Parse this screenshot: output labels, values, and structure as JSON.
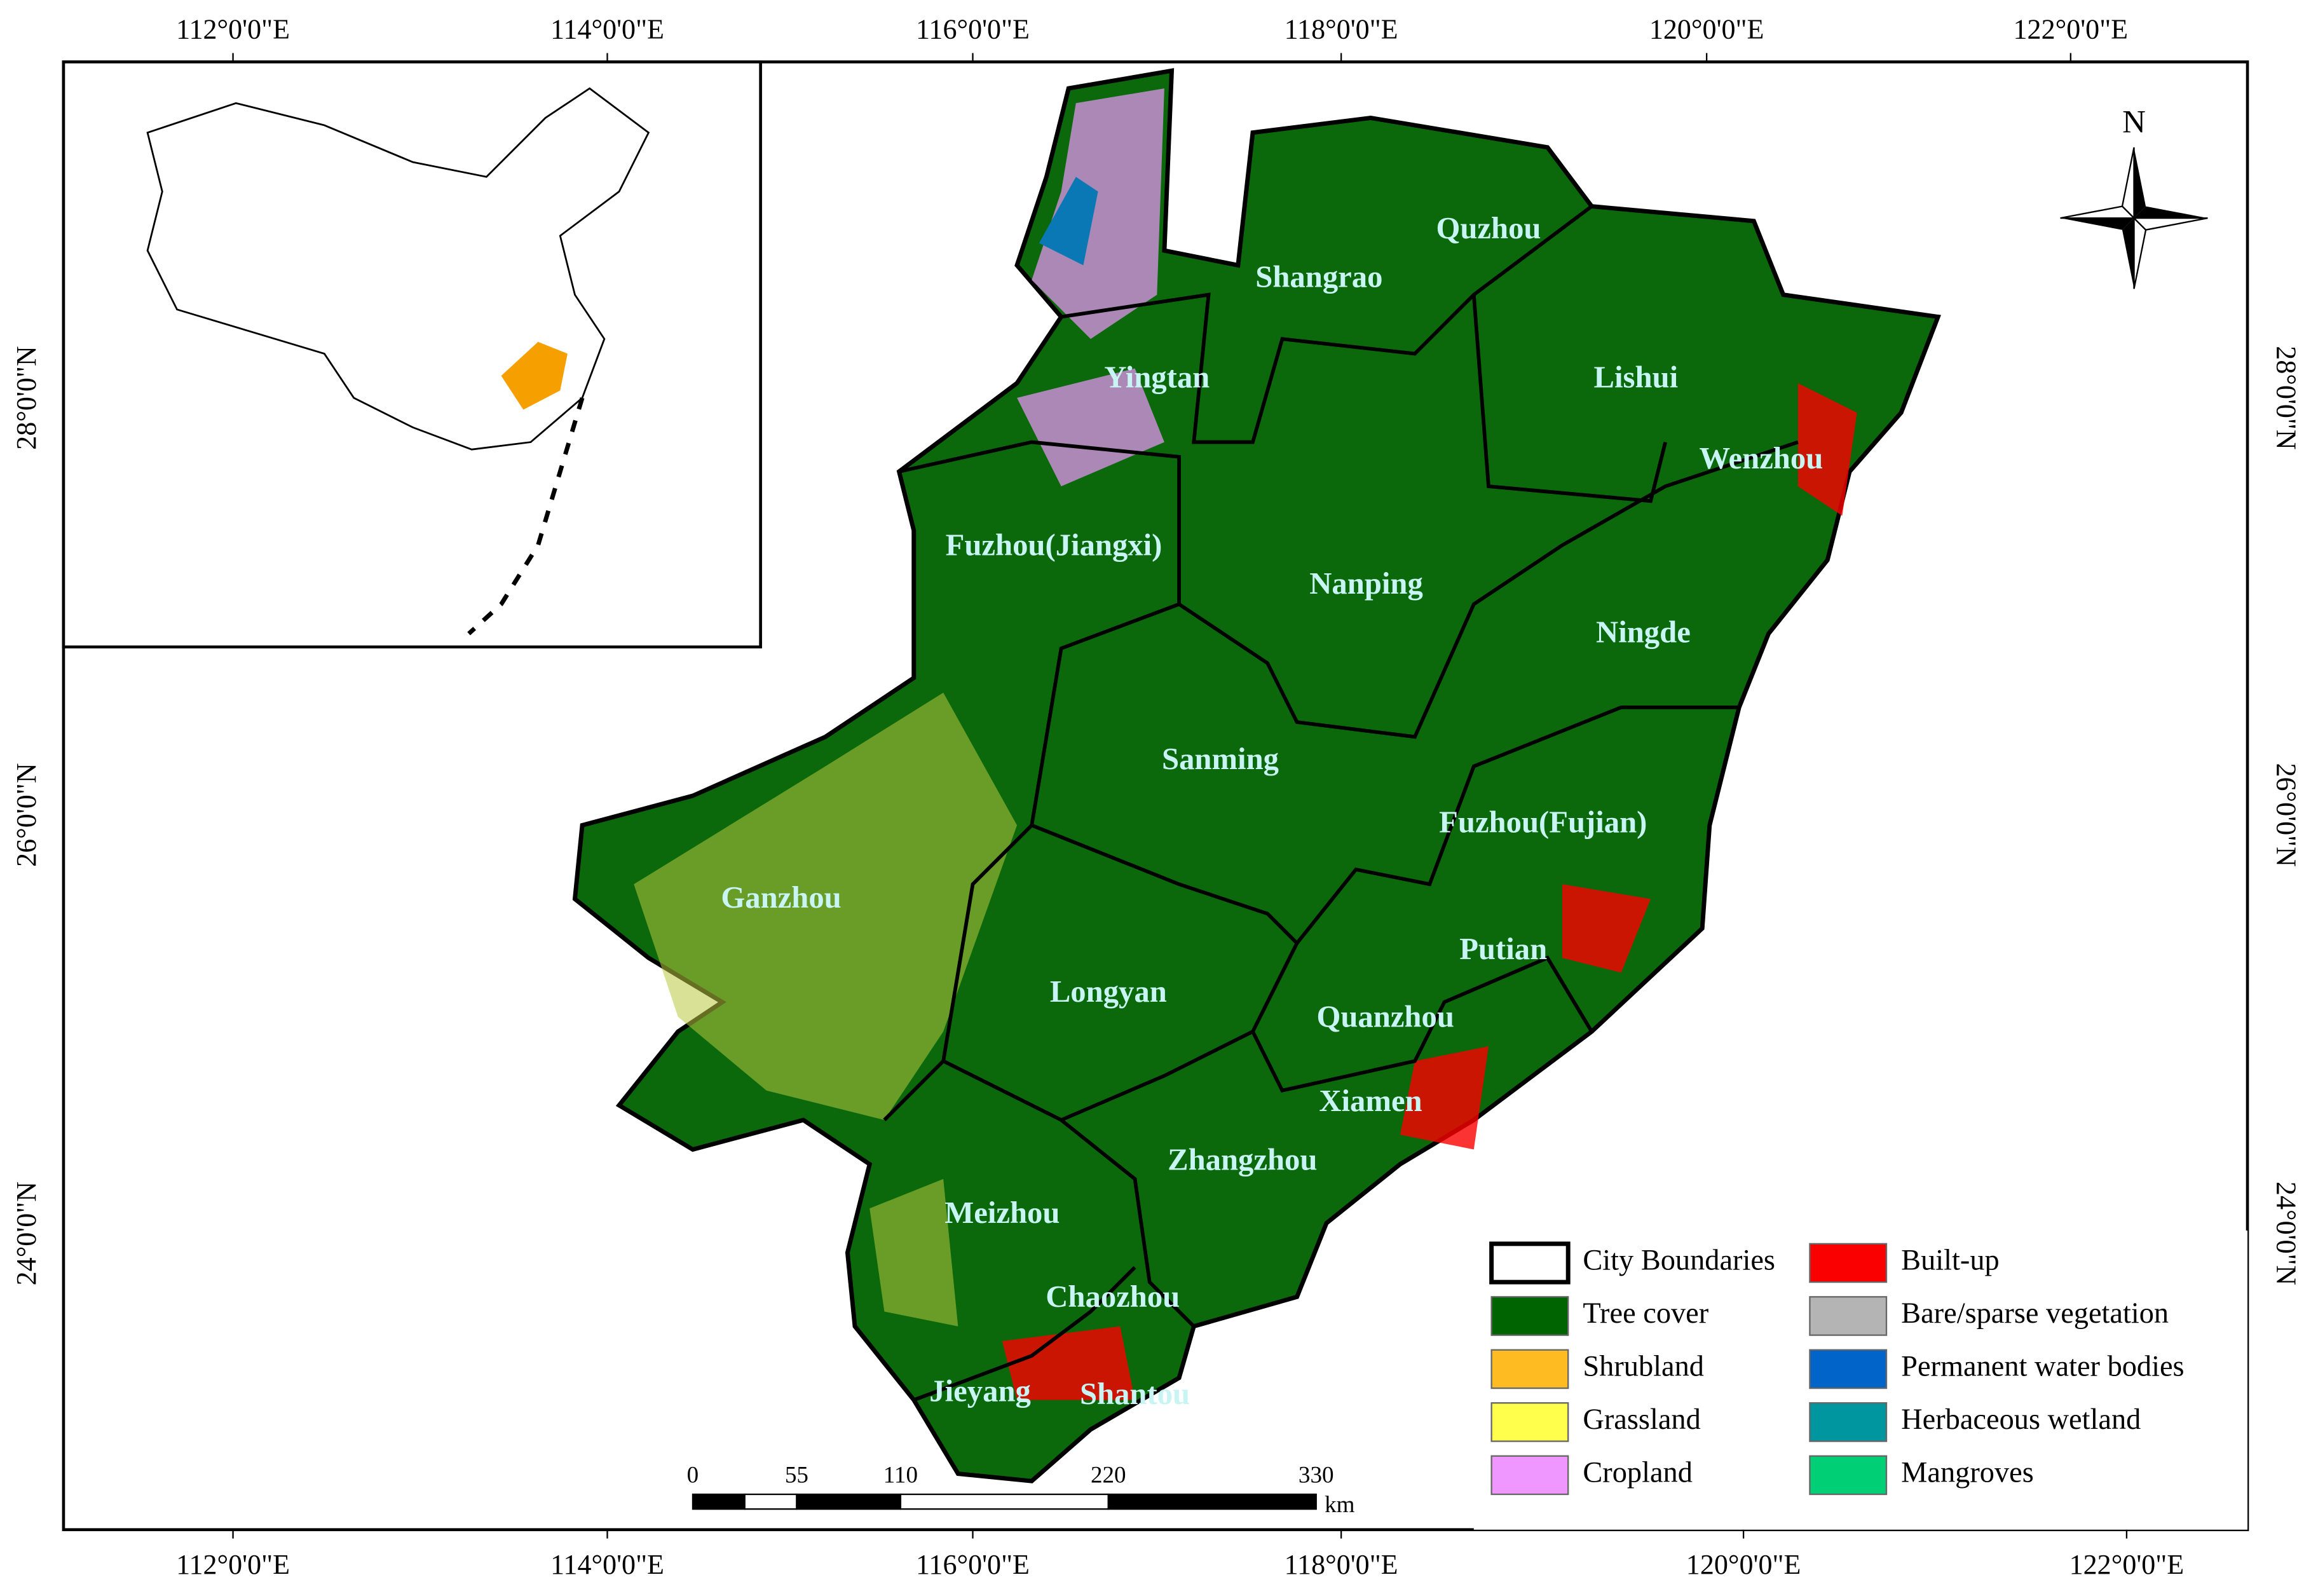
{
  "top_longitude_labels": [
    "112°0'0\"E",
    "114°0'0\"E",
    "116°0'0\"E",
    "118°0'0\"E",
    "120°0'0\"E",
    "122°0'0\"E"
  ],
  "bottom_longitude_labels": [
    "112°0'0\"E",
    "114°0'0\"E",
    "116°0'0\"E",
    "118°0'0\"E",
    "120°0'0\"E",
    "122°0'0\"E"
  ],
  "left_latitude_labels": [
    "28°0'0\"N",
    "26°0'0\"N",
    "24°0'0\"N"
  ],
  "right_latitude_labels": [
    "28°0'0\"N",
    "26°0'0\"N",
    "24°0'0\"N"
  ],
  "north_arrow": "N",
  "cities": [
    "Quzhou",
    "Shangrao",
    "Yingtan",
    "Lishui",
    "Wenzhou",
    "Fuzhou(Jiangxi)",
    "Nanping",
    "Ningde",
    "Sanming",
    "Fuzhou(Fujian)",
    "Ganzhou",
    "Putian",
    "Longyan",
    "Quanzhou",
    "Xiamen",
    "Zhangzhou",
    "Meizhou",
    "Chaozhou",
    "Jieyang",
    "Shantou"
  ],
  "scale_bar": {
    "ticks": [
      0,
      55,
      110,
      220,
      330
    ],
    "unit": "km"
  },
  "legend": [
    {
      "label": "City Boundaries",
      "color": "#ffffff"
    },
    {
      "label": "Tree cover",
      "color": "#006400"
    },
    {
      "label": "Shrubland",
      "color": "#ffbb22"
    },
    {
      "label": "Grassland",
      "color": "#ffff4c"
    },
    {
      "label": "Cropland",
      "color": "#f096ff"
    },
    {
      "label": "Built-up",
      "color": "#fa0000"
    },
    {
      "label": "Bare/sparse vegetation",
      "color": "#b4b4b4"
    },
    {
      "label": "Permanent water bodies",
      "color": "#0064c8"
    },
    {
      "label": "Herbaceous wetland",
      "color": "#0096a0"
    },
    {
      "label": "Mangroves",
      "color": "#00cf75"
    }
  ]
}
